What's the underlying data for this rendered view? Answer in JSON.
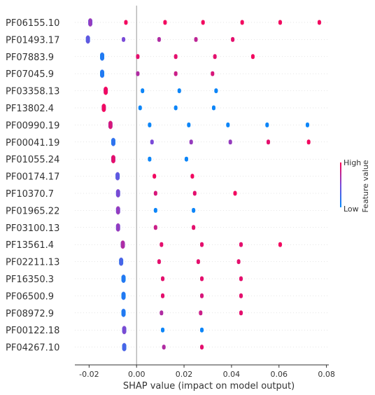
{
  "chart_data": {
    "type": "scatter",
    "subtype": "shap-beeswarm",
    "xlabel": "SHAP value (impact on model output)",
    "xlim": [
      -0.026,
      0.081
    ],
    "xticks": [
      "-0.02",
      "0.00",
      "0.02",
      "0.04",
      "0.06",
      "0.08"
    ],
    "xtick_values": [
      -0.02,
      0.0,
      0.02,
      0.04,
      0.06,
      0.08
    ],
    "colorbar": {
      "label": "Feature value",
      "high": "High",
      "low": "Low",
      "high_color": "#ff0052",
      "low_color": "#008bfb"
    },
    "features": [
      {
        "name": "PF06155.10",
        "base": -0.0195,
        "base_value": 0.5,
        "points": [
          [
            -0.0045,
            0.95
          ],
          [
            0.012,
            0.95
          ],
          [
            0.028,
            0.95
          ],
          [
            0.0445,
            0.95
          ],
          [
            0.0605,
            0.95
          ],
          [
            0.077,
            0.95
          ]
        ]
      },
      {
        "name": "PF01493.17",
        "base": -0.0205,
        "base_value": 0.3,
        "points": [
          [
            -0.0055,
            0.5
          ],
          [
            0.0095,
            0.7
          ],
          [
            0.025,
            0.75
          ],
          [
            0.0405,
            0.9
          ]
        ]
      },
      {
        "name": "PF07883.9",
        "base": -0.0145,
        "base_value": 0.05,
        "points": [
          [
            0.0005,
            0.9
          ],
          [
            0.0165,
            0.9
          ],
          [
            0.033,
            0.9
          ],
          [
            0.049,
            0.95
          ]
        ]
      },
      {
        "name": "PF07045.9",
        "base": -0.0145,
        "base_value": 0.05,
        "points": [
          [
            0.0005,
            0.7
          ],
          [
            0.0165,
            0.8
          ],
          [
            0.032,
            0.85
          ]
        ]
      },
      {
        "name": "PF03358.13",
        "base": -0.013,
        "base_value": 0.85,
        "points": [
          [
            0.0025,
            0.05
          ],
          [
            0.018,
            0.05
          ],
          [
            0.0335,
            0.05
          ]
        ]
      },
      {
        "name": "PF13802.4",
        "base": -0.0138,
        "base_value": 0.85,
        "points": [
          [
            0.0015,
            0.05
          ],
          [
            0.0165,
            0.05
          ],
          [
            0.0325,
            0.05
          ]
        ]
      },
      {
        "name": "PF00990.19",
        "base": -0.011,
        "base_value": 0.75,
        "points": [
          [
            0.0055,
            0.05
          ],
          [
            0.022,
            0.05
          ],
          [
            0.0385,
            0.05
          ],
          [
            0.055,
            0.05
          ],
          [
            0.072,
            0.05
          ]
        ]
      },
      {
        "name": "PF00041.19",
        "base": -0.0098,
        "base_value": 0.1,
        "points": [
          [
            0.0065,
            0.5
          ],
          [
            0.023,
            0.6
          ],
          [
            0.0395,
            0.6
          ],
          [
            0.0555,
            0.9
          ],
          [
            0.0725,
            0.95
          ]
        ]
      },
      {
        "name": "PF01055.24",
        "base": -0.0098,
        "base_value": 0.8,
        "points": [
          [
            0.0055,
            0.05
          ],
          [
            0.021,
            0.05
          ]
        ]
      },
      {
        "name": "PF00174.17",
        "base": -0.008,
        "base_value": 0.3,
        "points": [
          [
            0.0075,
            0.95
          ],
          [
            0.0235,
            0.95
          ]
        ]
      },
      {
        "name": "PF10370.7",
        "base": -0.0078,
        "base_value": 0.4,
        "points": [
          [
            0.008,
            0.85
          ],
          [
            0.0245,
            0.9
          ],
          [
            0.0415,
            0.95
          ]
        ]
      },
      {
        "name": "PF01965.22",
        "base": -0.0078,
        "base_value": 0.5,
        "points": [
          [
            0.008,
            0.05
          ],
          [
            0.024,
            0.05
          ]
        ]
      },
      {
        "name": "PF03100.13",
        "base": -0.0078,
        "base_value": 0.5,
        "points": [
          [
            0.008,
            0.8
          ],
          [
            0.024,
            0.9
          ]
        ]
      },
      {
        "name": "PF13561.4",
        "base": -0.0058,
        "base_value": 0.6,
        "points": [
          [
            0.0105,
            0.9
          ],
          [
            0.0275,
            0.9
          ],
          [
            0.044,
            0.9
          ],
          [
            0.0605,
            0.95
          ]
        ]
      },
      {
        "name": "PF02211.13",
        "base": -0.0065,
        "base_value": 0.2,
        "points": [
          [
            0.0095,
            0.9
          ],
          [
            0.026,
            0.9
          ],
          [
            0.043,
            0.9
          ]
        ]
      },
      {
        "name": "PF16350.3",
        "base": -0.0055,
        "base_value": 0.05,
        "points": [
          [
            0.011,
            0.9
          ],
          [
            0.0275,
            0.9
          ],
          [
            0.044,
            0.9
          ]
        ]
      },
      {
        "name": "PF06500.9",
        "base": -0.0055,
        "base_value": 0.05,
        "points": [
          [
            0.011,
            0.9
          ],
          [
            0.0275,
            0.85
          ],
          [
            0.044,
            0.9
          ]
        ]
      },
      {
        "name": "PF08972.9",
        "base": -0.0055,
        "base_value": 0.05,
        "points": [
          [
            0.0105,
            0.7
          ],
          [
            0.027,
            0.8
          ],
          [
            0.044,
            0.9
          ]
        ]
      },
      {
        "name": "PF00122.18",
        "base": -0.0052,
        "base_value": 0.4,
        "points": [
          [
            0.011,
            0.05
          ],
          [
            0.0275,
            0.05
          ]
        ]
      },
      {
        "name": "PF04267.10",
        "base": -0.0052,
        "base_value": 0.2,
        "points": [
          [
            0.0115,
            0.7
          ],
          [
            0.0275,
            0.9
          ]
        ]
      }
    ]
  }
}
